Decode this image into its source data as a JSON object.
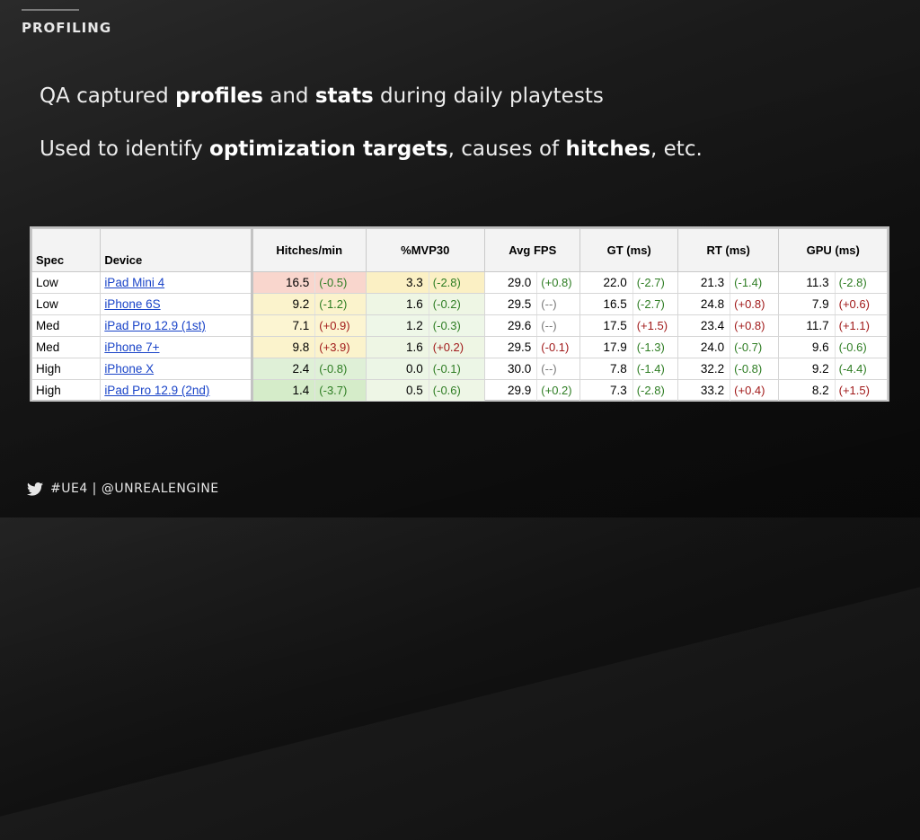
{
  "header": {
    "section_title": "PROFILING"
  },
  "bullets": {
    "line1": {
      "p1": "QA captured ",
      "b1": "profiles",
      "p2": " and ",
      "b2": "stats",
      "p3": " during daily playtests"
    },
    "line2": {
      "p1": "Used to identify ",
      "b1": "optimization targets",
      "p2": ", causes of ",
      "b2": "hitches",
      "p3": ", etc."
    }
  },
  "table": {
    "headers": [
      "Spec",
      "Device",
      "Hitches/min",
      "%MVP30",
      "Avg FPS",
      "GT (ms)",
      "RT (ms)",
      "GPU (ms)"
    ],
    "rows": [
      {
        "spec": "Low",
        "device": "iPad Mini 4",
        "cells": [
          [
            "16.5",
            "(-0.5)"
          ],
          [
            "3.3",
            "(-2.8)"
          ],
          [
            "29.0",
            "(+0.8)"
          ],
          [
            "22.0",
            "(-2.7)"
          ],
          [
            "21.3",
            "(-1.4)"
          ],
          [
            "11.3",
            "(-2.8)"
          ]
        ]
      },
      {
        "spec": "Low",
        "device": "iPhone 6S",
        "cells": [
          [
            "9.2",
            "(-1.2)"
          ],
          [
            "1.6",
            "(-0.2)"
          ],
          [
            "29.5",
            "(--)"
          ],
          [
            "16.5",
            "(-2.7)"
          ],
          [
            "24.8",
            "(+0.8)"
          ],
          [
            "7.9",
            "(+0.6)"
          ]
        ]
      },
      {
        "spec": "Med",
        "device": "iPad Pro 12.9 (1st)",
        "cells": [
          [
            "7.1",
            "(+0.9)"
          ],
          [
            "1.2",
            "(-0.3)"
          ],
          [
            "29.6",
            "(--)"
          ],
          [
            "17.5",
            "(+1.5)"
          ],
          [
            "23.4",
            "(+0.8)"
          ],
          [
            "11.7",
            "(+1.1)"
          ]
        ]
      },
      {
        "spec": "Med",
        "device": "iPhone 7+",
        "cells": [
          [
            "9.8",
            "(+3.9)"
          ],
          [
            "1.6",
            "(+0.2)"
          ],
          [
            "29.5",
            "(-0.1)"
          ],
          [
            "17.9",
            "(-1.3)"
          ],
          [
            "24.0",
            "(-0.7)"
          ],
          [
            "9.6",
            "(-0.6)"
          ]
        ]
      },
      {
        "spec": "High",
        "device": "iPhone X",
        "cells": [
          [
            "2.4",
            "(-0.8)"
          ],
          [
            "0.0",
            "(-0.1)"
          ],
          [
            "30.0",
            "(--)"
          ],
          [
            "7.8",
            "(-1.4)"
          ],
          [
            "32.2",
            "(-0.8)"
          ],
          [
            "9.2",
            "(-4.4)"
          ]
        ]
      },
      {
        "spec": "High",
        "device": "iPad Pro 12.9 (2nd)",
        "cells": [
          [
            "1.4",
            "(-3.7)"
          ],
          [
            "0.5",
            "(-0.6)"
          ],
          [
            "29.9",
            "(+0.2)"
          ],
          [
            "7.3",
            "(-2.8)"
          ],
          [
            "33.2",
            "(+0.4)"
          ],
          [
            "8.2",
            "(+1.5)"
          ]
        ]
      }
    ],
    "cell_colors": {
      "hitches": [
        "#f9d6cd",
        "#fbf3cc",
        "#fcf5d2",
        "#fbf3cc",
        "#dff0d7",
        "#d5ecc9"
      ],
      "mvp": [
        "#fbf0c4",
        "#eef6e4",
        "#eef7e8",
        "#eef6e4",
        "#ecf6e6",
        "#eef6e6"
      ]
    },
    "delta_colors": {
      "improve": "#2e7d23",
      "regress": "#a11a1a",
      "neutral": "#777777"
    }
  },
  "footer": {
    "icon": "twitter-bird-icon",
    "text": "#UE4 | @UNREALENGINE"
  }
}
